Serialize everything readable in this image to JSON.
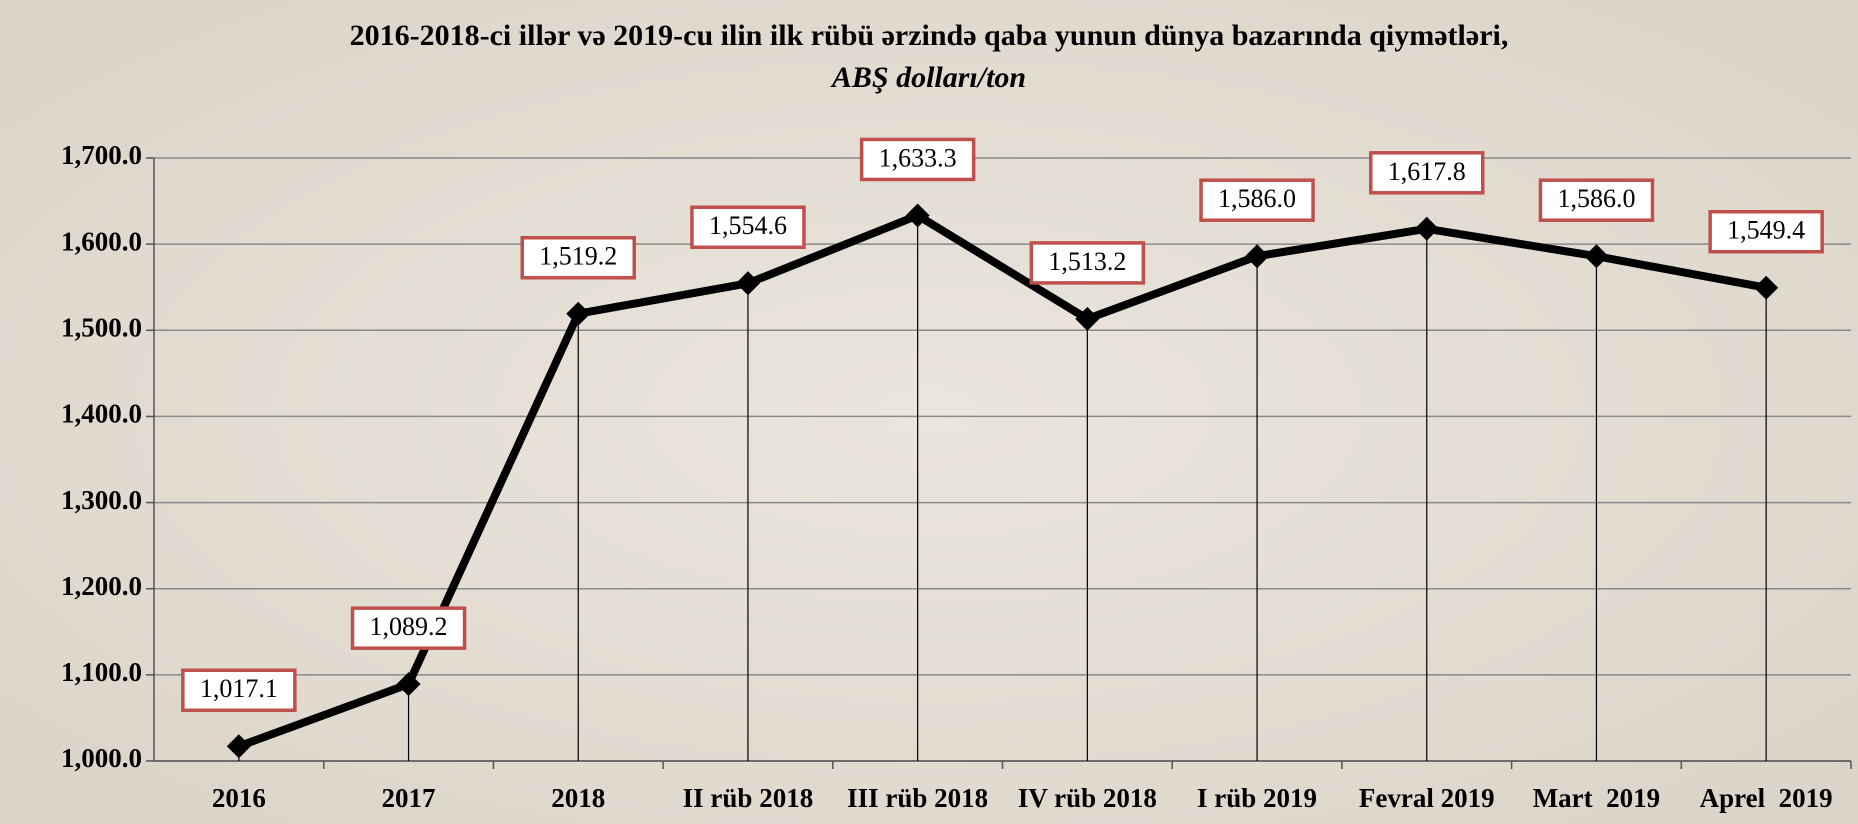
{
  "chart_data": {
    "type": "line",
    "title": "2016-2018-ci illər və 2019-cu ilin ilk rübü ərzində qaba yunun dünya bazarında qiymətləri,",
    "subtitle": "ABŞ dolları/ton",
    "categories": [
      "2016",
      "2017",
      "2018",
      "II rüb 2018",
      "III rüb 2018",
      "IV rüb 2018",
      "I rüb 2019",
      "Fevral 2019",
      "Mart  2019",
      "Aprel  2019"
    ],
    "values": [
      1017.1,
      1089.2,
      1519.2,
      1554.6,
      1633.3,
      1513.2,
      1586.0,
      1617.8,
      1586.0,
      1549.4
    ],
    "value_labels": [
      "1,017.1",
      "1,089.2",
      "1,519.2",
      "1,554.6",
      "1,633.3",
      "1,513.2",
      "1,586.0",
      "1,617.8",
      "1,586.0",
      "1,549.4"
    ],
    "color": "#000000",
    "label_border_color": "#c0504d",
    "ylim": [
      1000,
      1700
    ],
    "yticks": [
      {
        "value": 1000,
        "label": "1,000.0"
      },
      {
        "value": 1100,
        "label": "1,100.0"
      },
      {
        "value": 1200,
        "label": "1,200.0"
      },
      {
        "value": 1300,
        "label": "1,300.0"
      },
      {
        "value": 1400,
        "label": "1,400.0"
      },
      {
        "value": 1500,
        "label": "1,500.0"
      },
      {
        "value": 1600,
        "label": "1,600.0"
      },
      {
        "value": 1700,
        "label": "1,700.0"
      }
    ],
    "grid": true
  }
}
